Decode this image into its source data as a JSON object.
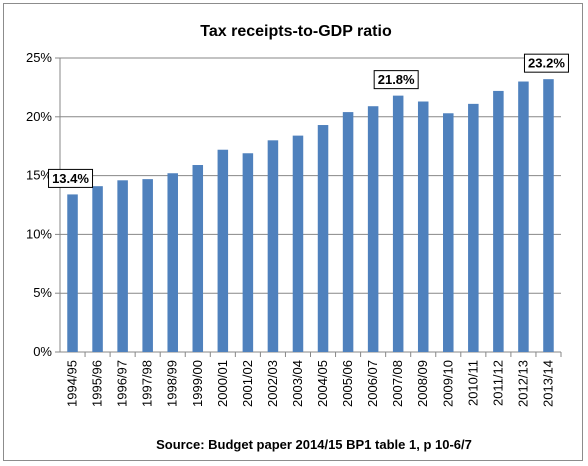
{
  "chart_data": {
    "type": "bar",
    "title": "Tax receipts-to-GDP ratio",
    "source": "Source: Budget paper 2014/15 BP1 table 1, p 10-6/7",
    "categories": [
      "1994/95",
      "1995/96",
      "1996/97",
      "1997/98",
      "1998/99",
      "1999/00",
      "2000/01",
      "2001/02",
      "2002/03",
      "2003/04",
      "2004/05",
      "2005/06",
      "2006/07",
      "2007/08",
      "2008/09",
      "2009/10",
      "2010/11",
      "2011/12",
      "2012/13",
      "2013/14"
    ],
    "values": [
      13.4,
      14.1,
      14.6,
      14.7,
      15.2,
      15.9,
      17.2,
      16.9,
      18.0,
      18.4,
      19.3,
      20.4,
      20.9,
      21.8,
      21.3,
      20.3,
      21.1,
      22.2,
      23.0,
      23.2
    ],
    "ylim": [
      0,
      25
    ],
    "yticks": [
      "0%",
      "5%",
      "10%",
      "15%",
      "20%",
      "25%"
    ],
    "grid": true,
    "bar_color": "#4f81bd",
    "annotations": [
      {
        "index": 0,
        "label": "13.4%"
      },
      {
        "index": 13,
        "label": "21.8%"
      },
      {
        "index": 19,
        "label": "23.2%"
      }
    ]
  }
}
